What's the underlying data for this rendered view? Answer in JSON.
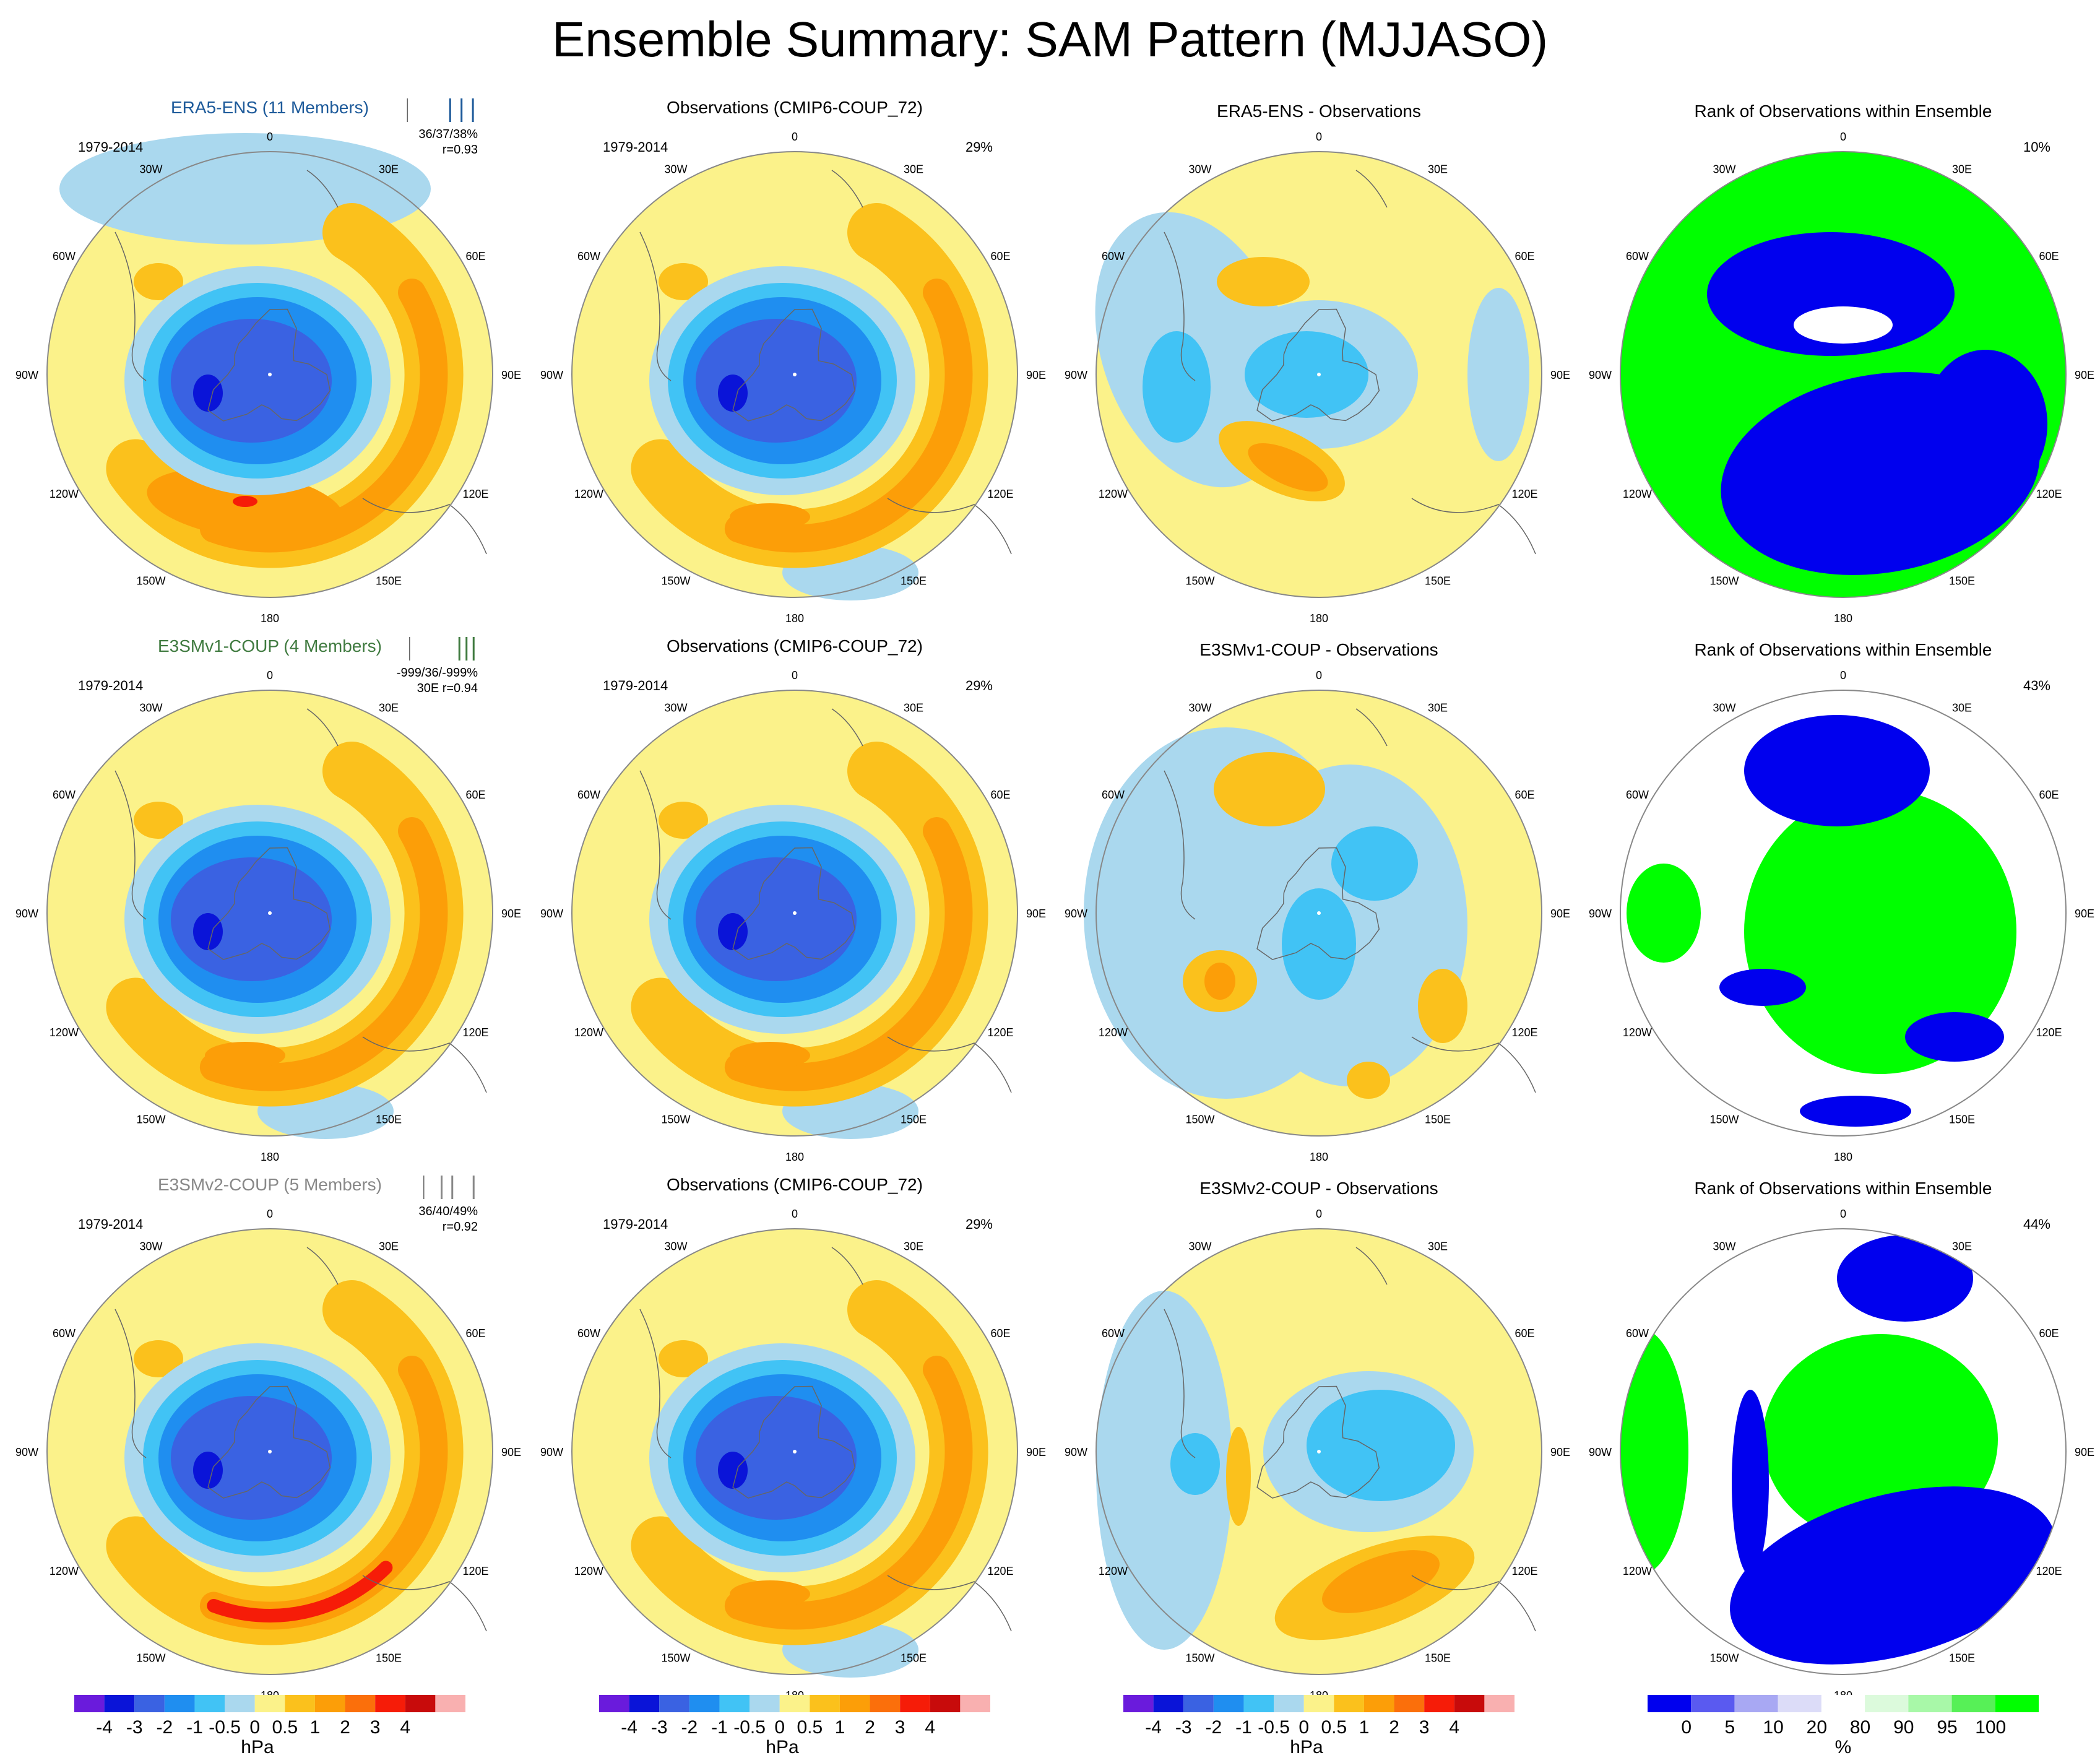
{
  "title": "Ensemble Summary: SAM Pattern (MJJASO)",
  "colors": {
    "blues": [
      "#6a1bdc",
      "#0a14d8",
      "#3a62e2",
      "#1f8ef0",
      "#41c3f5",
      "#aad8ee"
    ],
    "yellow": "#fbf28a",
    "oranges": [
      "#fbc11c",
      "#fc9e08",
      "#fb6f0b",
      "#f61c08",
      "#c80b0b",
      "#f9b0b0"
    ],
    "rank_blue": "#0000ee",
    "rank_green": "#00ff00",
    "coast": "#666666"
  },
  "chart_data": {
    "type": "polar-contour-grid",
    "panel_meta": {
      "period": "1979-2014",
      "lon_labels": [
        "0",
        "30E",
        "60E",
        "90E",
        "120E",
        "150E",
        "180",
        "150W",
        "120W",
        "90W",
        "60W",
        "30W"
      ]
    },
    "rows": [
      {
        "label": "ERA5-ENS (11 Members)",
        "label_color": "#1d5a9a",
        "stats": [
          "36/37/38%",
          "r=0.93"
        ],
        "spread_ticks": [
          0.02,
          0.62,
          0.78,
          0.94
        ],
        "obs_title": "Observations (CMIP6-COUP_72)",
        "obs_pct": "29%",
        "diff_title": "ERA5-ENS - Observations",
        "rank_title": "Rank of Observations within Ensemble",
        "rank_pct": "10%"
      },
      {
        "label": "E3SMv1-COUP (4 Members)",
        "label_color": "#3f7a3f",
        "stats": [
          "-999/36/-999%",
          "30E r=0.94"
        ],
        "spread_ticks": [
          0.05,
          0.75,
          0.85,
          0.95
        ],
        "obs_title": "Observations (CMIP6-COUP_72)",
        "obs_pct": "29%",
        "diff_title": "E3SMv1-COUP - Observations",
        "rank_title": "Rank of Observations within Ensemble",
        "rank_pct": "43%"
      },
      {
        "label": "E3SMv2-COUP (5 Members)",
        "label_color": "#888888",
        "stats": [
          "36/40/49%",
          "r=0.92"
        ],
        "spread_ticks": [
          0.25,
          0.5,
          0.65,
          0.95
        ],
        "obs_title": "Observations (CMIP6-COUP_72)",
        "obs_pct": "29%",
        "diff_title": "E3SMv2-COUP - Observations",
        "rank_title": "Rank of Observations within Ensemble",
        "rank_pct": "44%"
      }
    ],
    "colorbar_hpa": {
      "ticks": [
        "-4",
        "-3",
        "-2",
        "-1",
        "-0.5",
        "0",
        "0.5",
        "1",
        "2",
        "3",
        "4"
      ],
      "unit": "hPa"
    },
    "colorbar_rank": {
      "ticks": [
        "0",
        "5",
        "10",
        "20",
        "80",
        "90",
        "95",
        "100"
      ],
      "unit": "%"
    }
  }
}
